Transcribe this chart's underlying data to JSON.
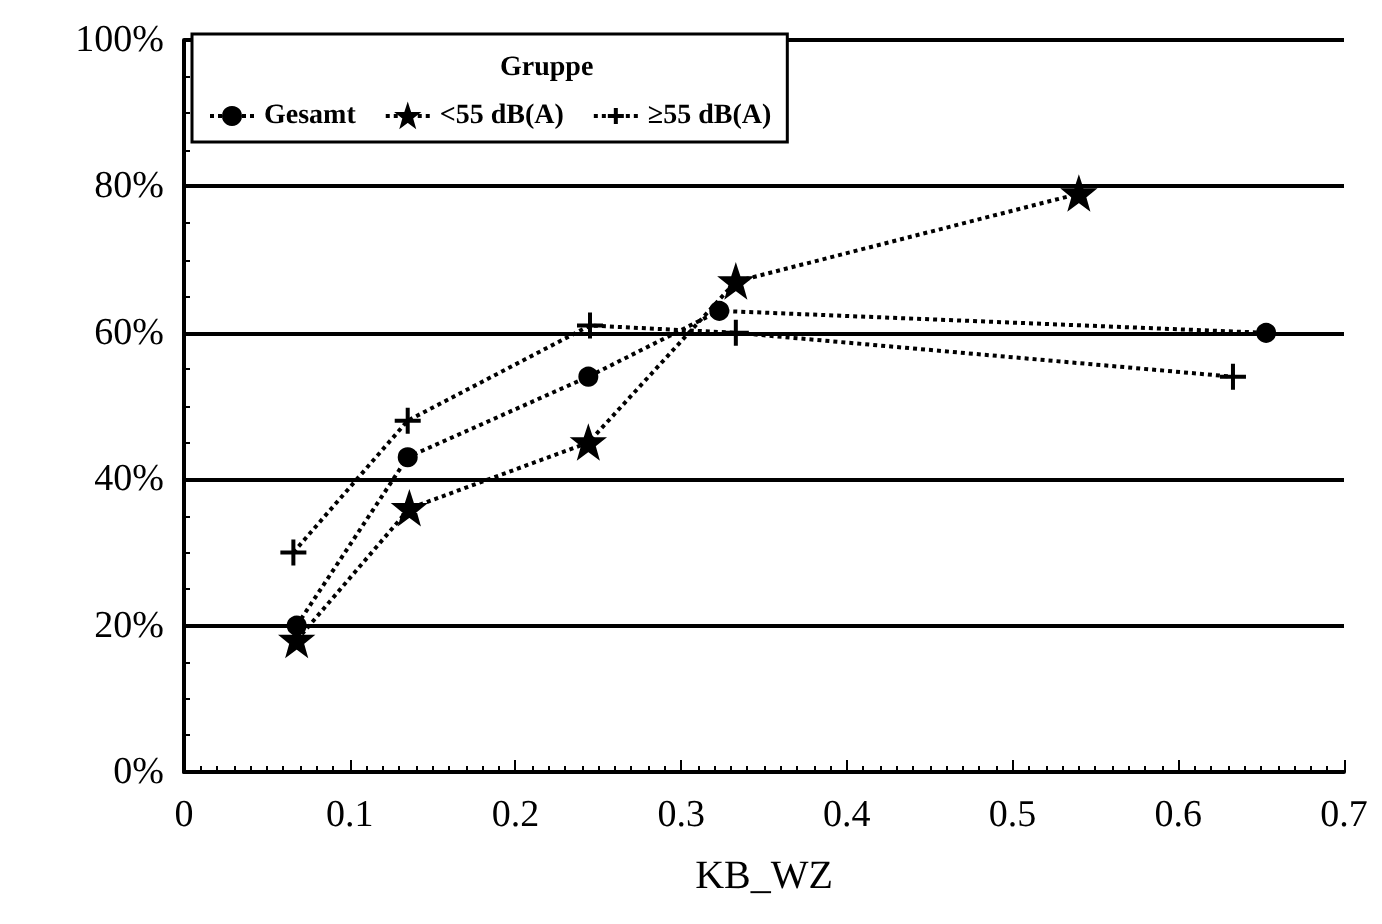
{
  "chart_data": {
    "type": "line",
    "xlabel": "KB_WZ",
    "legend_title": "Gruppe",
    "legend": "top left",
    "grid": "y",
    "line_style": "dotted",
    "xlim": [
      0,
      0.7
    ],
    "xticks": [
      0,
      0.1,
      0.2,
      0.3,
      0.4,
      0.5,
      0.6,
      0.7
    ],
    "ylim": [
      0,
      100
    ],
    "yticks": [
      {
        "value": 0,
        "label": "0%"
      },
      {
        "value": 20,
        "label": "20%"
      },
      {
        "value": 40,
        "label": "40%"
      },
      {
        "value": 60,
        "label": "60%"
      },
      {
        "value": 80,
        "label": "80%"
      },
      {
        "value": 100,
        "label": "100%"
      }
    ],
    "series": [
      {
        "name": "Gesamt",
        "color": "#000000",
        "marker": "circle",
        "x": [
          0.068,
          0.135,
          0.244,
          0.323,
          0.653
        ],
        "values": [
          20,
          43,
          54,
          63,
          60
        ]
      },
      {
        "name": "<55 dB(A)",
        "color": "#000000",
        "marker": "star",
        "x": [
          0.068,
          0.136,
          0.244,
          0.333,
          0.54
        ],
        "values": [
          18,
          36,
          45,
          67,
          79
        ]
      },
      {
        "name": "≥55 dB(A)",
        "color": "#000000",
        "marker": "cross",
        "x": [
          0.066,
          0.135,
          0.245,
          0.333,
          0.633
        ],
        "values": [
          30,
          48,
          61,
          60,
          54
        ]
      }
    ]
  }
}
